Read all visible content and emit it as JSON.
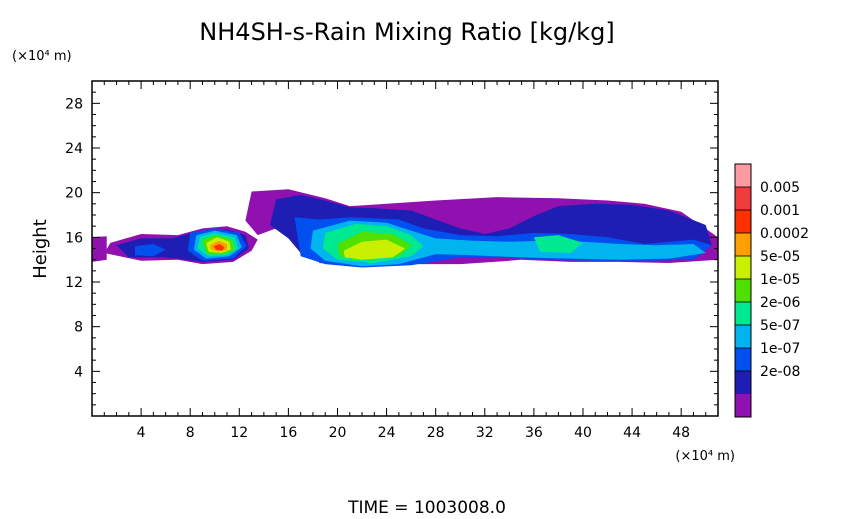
{
  "chart_data": {
    "type": "heatmap",
    "title": "NH4SH-s-Rain Mixing Ratio [kg/kg]",
    "ylabel": "Height",
    "x_unit": "(×10⁴ m)",
    "y_unit": "(×10⁴ m)",
    "xlim": [
      0,
      51
    ],
    "ylim": [
      0,
      30
    ],
    "x_ticks": [
      4,
      8,
      12,
      16,
      20,
      24,
      28,
      32,
      36,
      40,
      44,
      48
    ],
    "y_ticks": [
      4,
      8,
      12,
      16,
      20,
      24,
      28
    ],
    "colorbar": {
      "labels": [
        "0.005",
        "0.001",
        "0.0002",
        "5e-05",
        "1e-05",
        "2e-06",
        "5e-07",
        "1e-07",
        "2e-08"
      ],
      "colors": [
        "#ff9aa2",
        "#f03c3c",
        "#ff3000",
        "#ffa000",
        "#c8f000",
        "#50e000",
        "#00e890",
        "#00b4f0",
        "#0050f0",
        "#1e1eb4",
        "#9010b0"
      ]
    },
    "regions": [
      {
        "level": 10,
        "pts": [
          [
            18.5,
            15.0
          ],
          [
            22,
            15.6
          ],
          [
            26,
            15.0
          ],
          [
            30,
            14.3
          ],
          [
            34,
            14.8
          ],
          [
            38,
            15.4
          ],
          [
            42,
            15.2
          ],
          [
            44,
            14.8
          ],
          [
            43,
            14.2
          ],
          [
            38,
            14.3
          ],
          [
            34,
            13.9
          ],
          [
            30,
            13.6
          ],
          [
            26,
            13.6
          ],
          [
            22,
            13.4
          ],
          [
            18.5,
            13.7
          ]
        ]
      },
      {
        "level": 10,
        "pts": [
          [
            13,
            20.1
          ],
          [
            16,
            20.3
          ],
          [
            19,
            19.5
          ],
          [
            21,
            18.8
          ],
          [
            24,
            19.0
          ],
          [
            28,
            19.3
          ],
          [
            33,
            19.6
          ],
          [
            38,
            19.5
          ],
          [
            42,
            19.3
          ],
          [
            45,
            19.0
          ],
          [
            48,
            18.3
          ],
          [
            51,
            16.0
          ],
          [
            51,
            14.0
          ],
          [
            47,
            13.7
          ],
          [
            43,
            13.8
          ],
          [
            39,
            13.8
          ],
          [
            35,
            14.0
          ],
          [
            33,
            14.5
          ],
          [
            32,
            15.5
          ],
          [
            30,
            16.3
          ],
          [
            28,
            17.5
          ],
          [
            24,
            18.0
          ],
          [
            20,
            17.6
          ],
          [
            17,
            17.2
          ],
          [
            15,
            16.8
          ],
          [
            13.5,
            16.2
          ],
          [
            12.5,
            17.5
          ]
        ]
      },
      {
        "level": 10,
        "pts": [
          [
            1.5,
            15.5
          ],
          [
            4,
            16.3
          ],
          [
            7,
            16.2
          ],
          [
            9,
            16.8
          ],
          [
            11,
            17.0
          ],
          [
            12.5,
            16.5
          ],
          [
            13.5,
            15.8
          ],
          [
            13,
            14.8
          ],
          [
            11.5,
            13.8
          ],
          [
            9,
            13.6
          ],
          [
            7,
            14.0
          ],
          [
            4,
            13.9
          ],
          [
            1,
            14.6
          ]
        ]
      },
      {
        "level": 10,
        "pts": [
          [
            0,
            16.0
          ],
          [
            1.2,
            16.1
          ],
          [
            1.2,
            14.0
          ],
          [
            0,
            13.8
          ]
        ]
      },
      {
        "level": 9,
        "pts": [
          [
            15,
            19.4
          ],
          [
            17,
            19.8
          ],
          [
            19,
            19.3
          ],
          [
            21,
            18.7
          ],
          [
            23,
            18.6
          ],
          [
            26,
            18.4
          ],
          [
            28,
            17.6
          ],
          [
            30,
            16.8
          ],
          [
            32,
            16.3
          ],
          [
            34,
            16.8
          ],
          [
            36,
            17.9
          ],
          [
            38,
            18.8
          ],
          [
            41,
            19.0
          ],
          [
            44,
            18.9
          ],
          [
            47,
            18.4
          ],
          [
            50,
            17.1
          ],
          [
            50.5,
            15.3
          ],
          [
            48,
            14.2
          ],
          [
            45,
            14.0
          ],
          [
            41,
            14.0
          ],
          [
            37,
            14.0
          ],
          [
            33,
            14.3
          ],
          [
            30,
            14.5
          ],
          [
            26,
            13.7
          ],
          [
            22,
            13.5
          ],
          [
            19,
            13.8
          ],
          [
            17,
            14.6
          ],
          [
            16,
            15.9
          ],
          [
            14.5,
            17.1
          ]
        ]
      },
      {
        "level": 9,
        "pts": [
          [
            2,
            15.3
          ],
          [
            4,
            15.9
          ],
          [
            6.5,
            15.9
          ],
          [
            8.5,
            16.5
          ],
          [
            11,
            16.7
          ],
          [
            12.5,
            16.2
          ],
          [
            12.8,
            15.0
          ],
          [
            11.5,
            14.0
          ],
          [
            9,
            13.8
          ],
          [
            6,
            14.2
          ],
          [
            3,
            14.2
          ]
        ]
      },
      {
        "level": 8,
        "pts": [
          [
            16.5,
            17.8
          ],
          [
            18.5,
            17.6
          ],
          [
            21,
            17.8
          ],
          [
            25,
            17.6
          ],
          [
            27,
            16.8
          ],
          [
            30,
            16.2
          ],
          [
            33,
            16.1
          ],
          [
            36,
            16.4
          ],
          [
            39,
            16.3
          ],
          [
            42,
            16.0
          ],
          [
            45,
            15.4
          ],
          [
            49,
            15.8
          ],
          [
            50.5,
            15.3
          ],
          [
            49,
            14.0
          ],
          [
            45,
            13.9
          ],
          [
            41,
            13.9
          ],
          [
            37,
            14.0
          ],
          [
            33,
            14.2
          ],
          [
            30,
            14.2
          ],
          [
            26,
            13.5
          ],
          [
            22,
            13.3
          ],
          [
            19,
            13.6
          ],
          [
            17,
            14.3
          ]
        ]
      },
      {
        "level": 8,
        "pts": [
          [
            3.5,
            15.2
          ],
          [
            5,
            15.4
          ],
          [
            6,
            14.9
          ],
          [
            5,
            14.3
          ],
          [
            3.5,
            14.4
          ]
        ]
      },
      {
        "level": 8,
        "pts": [
          [
            8,
            16.4
          ],
          [
            10,
            16.8
          ],
          [
            12,
            16.4
          ],
          [
            12.6,
            15.2
          ],
          [
            11.5,
            14.1
          ],
          [
            9,
            13.9
          ],
          [
            7.8,
            14.8
          ]
        ]
      },
      {
        "level": 7,
        "pts": [
          [
            18,
            16.6
          ],
          [
            21,
            17.5
          ],
          [
            24,
            17.3
          ],
          [
            26,
            16.6
          ],
          [
            28,
            15.9
          ],
          [
            31,
            15.7
          ],
          [
            34,
            15.6
          ],
          [
            37,
            15.7
          ],
          [
            40,
            15.6
          ],
          [
            43,
            15.4
          ],
          [
            46,
            15.3
          ],
          [
            49,
            15.4
          ],
          [
            50,
            14.6
          ],
          [
            47,
            14.1
          ],
          [
            43,
            14.0
          ],
          [
            39,
            14.1
          ],
          [
            35,
            14.2
          ],
          [
            31,
            14.4
          ],
          [
            28,
            14.5
          ],
          [
            25,
            13.6
          ],
          [
            22,
            13.4
          ],
          [
            19,
            13.9
          ],
          [
            17.8,
            15.0
          ]
        ]
      },
      {
        "level": 7,
        "pts": [
          [
            8.5,
            16.2
          ],
          [
            10,
            16.6
          ],
          [
            11.8,
            16.2
          ],
          [
            12.2,
            15.1
          ],
          [
            11.2,
            14.3
          ],
          [
            9.3,
            14.1
          ],
          [
            8.3,
            14.9
          ]
        ]
      },
      {
        "level": 6,
        "pts": [
          [
            19,
            16.4
          ],
          [
            21.5,
            17.2
          ],
          [
            24,
            17.0
          ],
          [
            26,
            16.2
          ],
          [
            27,
            15.2
          ],
          [
            26,
            14.3
          ],
          [
            23,
            13.7
          ],
          [
            20,
            14.0
          ],
          [
            18.8,
            15.0
          ]
        ]
      },
      {
        "level": 6,
        "pts": [
          [
            8.8,
            16.0
          ],
          [
            10,
            16.4
          ],
          [
            11.6,
            16.0
          ],
          [
            11.9,
            15.0
          ],
          [
            11,
            14.4
          ],
          [
            9.5,
            14.3
          ],
          [
            8.6,
            15.0
          ]
        ]
      },
      {
        "level": 6,
        "pts": [
          [
            36,
            16.0
          ],
          [
            38,
            16.2
          ],
          [
            40,
            15.5
          ],
          [
            39,
            14.6
          ],
          [
            36.5,
            14.7
          ]
        ]
      },
      {
        "level": 5,
        "pts": [
          [
            20,
            15.4
          ],
          [
            22,
            16.5
          ],
          [
            24.5,
            16.3
          ],
          [
            26,
            15.3
          ],
          [
            25,
            14.3
          ],
          [
            22,
            14.0
          ],
          [
            20.2,
            14.3
          ]
        ]
      },
      {
        "level": 5,
        "pts": [
          [
            9,
            15.7
          ],
          [
            10,
            16.2
          ],
          [
            11.4,
            15.8
          ],
          [
            11.6,
            14.9
          ],
          [
            10.8,
            14.5
          ],
          [
            9.4,
            14.5
          ]
        ]
      },
      {
        "level": 4,
        "pts": [
          [
            20.5,
            14.8
          ],
          [
            22,
            15.6
          ],
          [
            24,
            15.8
          ],
          [
            25.5,
            15.0
          ],
          [
            24.5,
            14.2
          ],
          [
            22,
            14.0
          ],
          [
            20.6,
            14.2
          ]
        ]
      },
      {
        "level": 4,
        "pts": [
          [
            9.3,
            15.5
          ],
          [
            10.2,
            16.0
          ],
          [
            11.2,
            15.6
          ],
          [
            11.3,
            14.9
          ],
          [
            10.5,
            14.6
          ],
          [
            9.5,
            14.7
          ]
        ]
      },
      {
        "level": 3,
        "pts": [
          [
            9.6,
            15.3
          ],
          [
            10.3,
            15.7
          ],
          [
            11,
            15.4
          ],
          [
            11,
            14.9
          ],
          [
            10.3,
            14.7
          ],
          [
            9.7,
            14.9
          ]
        ]
      },
      {
        "level": 2,
        "pts": [
          [
            9.9,
            15.2
          ],
          [
            10.4,
            15.4
          ],
          [
            10.8,
            15.1
          ],
          [
            10.6,
            14.8
          ],
          [
            10.1,
            14.9
          ]
        ]
      }
    ]
  },
  "time_label": "TIME = 1003008.0"
}
